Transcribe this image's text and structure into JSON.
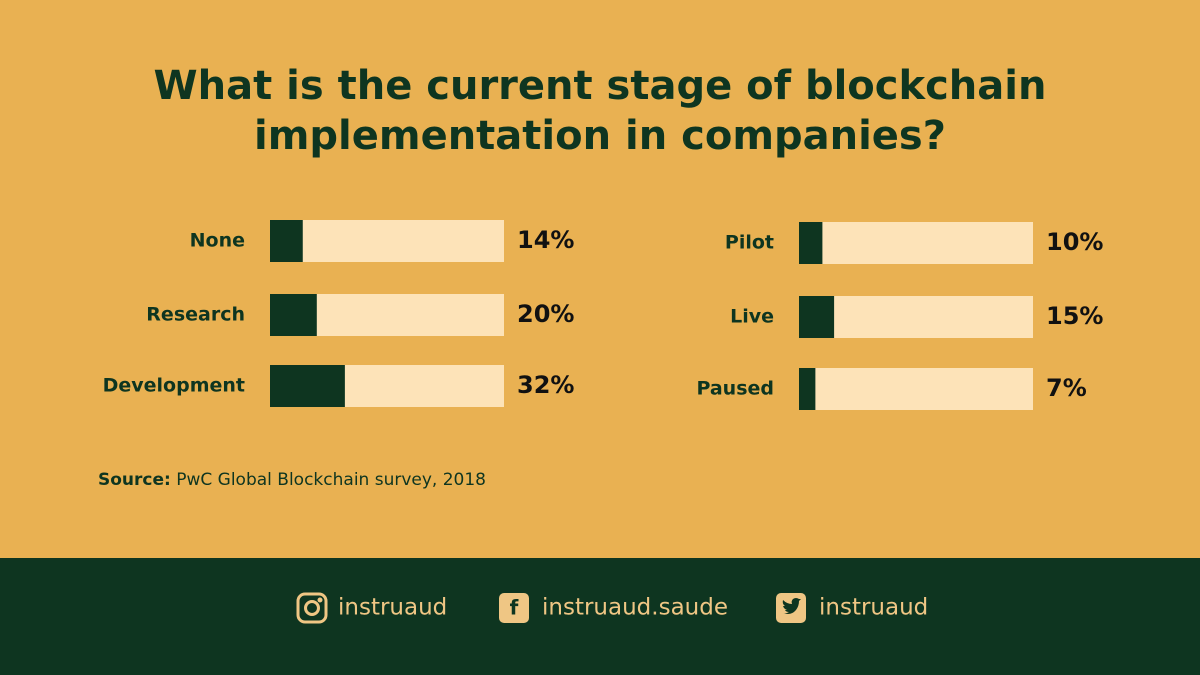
{
  "title": "What is the current stage of blockchain implementation in companies?",
  "chart_data": [
    {
      "type": "bar",
      "orientation": "horizontal",
      "categories": [
        "None",
        "Research",
        "Development"
      ],
      "values": [
        14,
        20,
        32
      ],
      "value_labels": [
        "14%",
        "20%",
        "32%"
      ],
      "xlim": [
        0,
        100
      ],
      "color": "#0e3520",
      "track_color": "#fde3b8"
    },
    {
      "type": "bar",
      "orientation": "horizontal",
      "categories": [
        "Pilot",
        "Live",
        "Paused"
      ],
      "values": [
        10,
        15,
        7
      ],
      "value_labels": [
        "10%",
        "15%",
        "7%"
      ],
      "xlim": [
        0,
        100
      ],
      "color": "#0e3520",
      "track_color": "#fde3b8"
    }
  ],
  "source": {
    "label": "Source:",
    "text": "PwC Global Blockchain survey, 2018"
  },
  "footer": {
    "instagram": "instruaud",
    "facebook": "instruaud.saude",
    "twitter": "instruaud"
  }
}
